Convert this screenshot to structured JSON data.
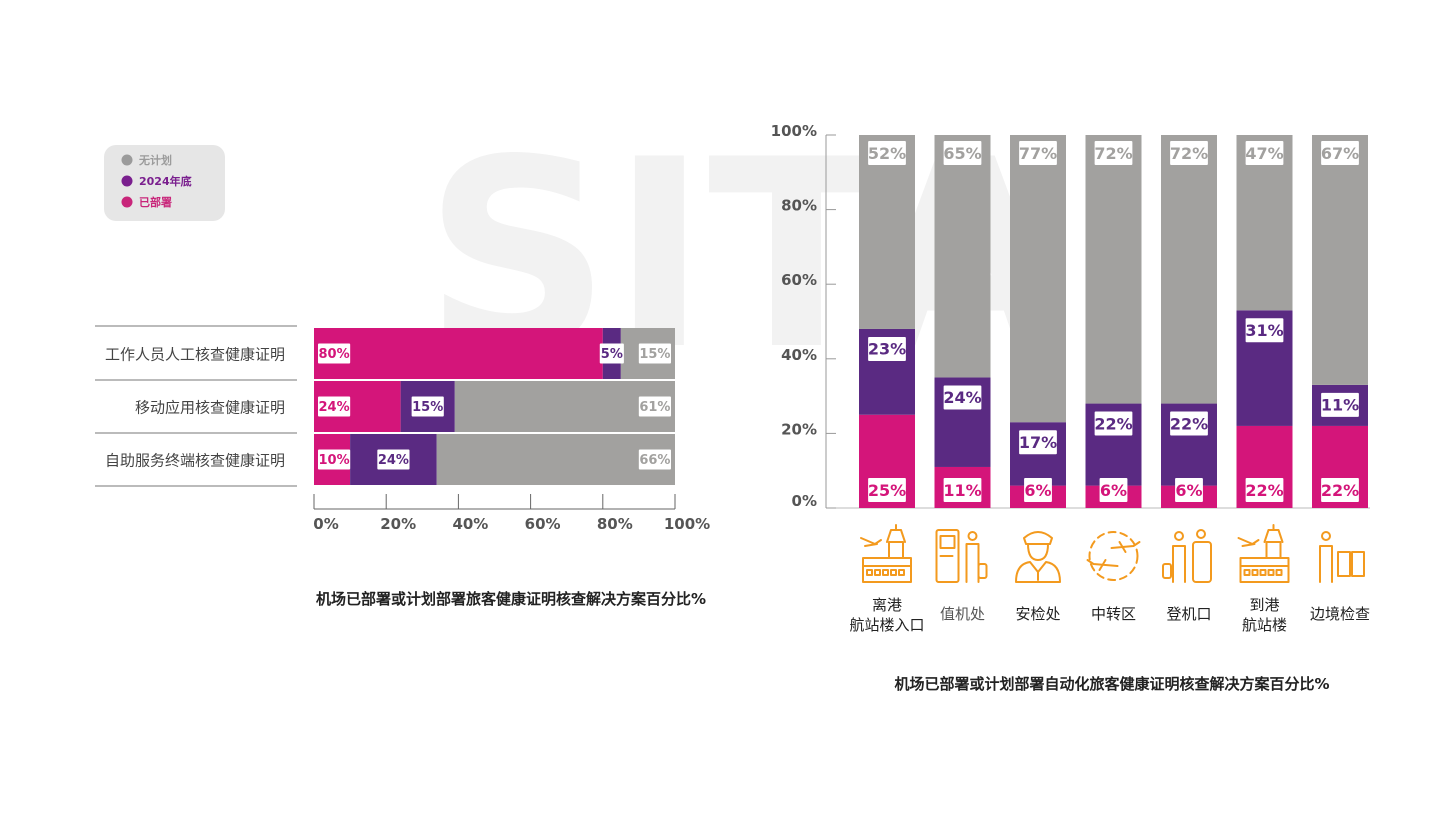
{
  "watermark": "SITA",
  "colors": {
    "deployed": "#d4157a",
    "plan_2024": "#5a2a82",
    "no_plan": "#a2a19f",
    "icon": "#f39a1e",
    "text": "#444444",
    "legend_bg": "#e6e6e6"
  },
  "legend": {
    "items": [
      {
        "label": "无计划",
        "color": "#9b9b9b"
      },
      {
        "label": "2024年底",
        "color": "#7a1f8e"
      },
      {
        "label": "已部署",
        "color": "#c8257a"
      }
    ]
  },
  "chart_data": [
    {
      "type": "bar",
      "orientation": "horizontal",
      "stacked": true,
      "title": "机场已部署或计划部署旅客健康证明核查解决方案百分比%",
      "categories": [
        "工作人员人工核查健康证明",
        "移动应用核查健康证明",
        "自助服务终端核查健康证明"
      ],
      "series": [
        {
          "name": "已部署",
          "values": [
            80,
            24,
            10
          ]
        },
        {
          "name": "2024年底",
          "values": [
            5,
            15,
            24
          ]
        },
        {
          "name": "无计划",
          "values": [
            15,
            61,
            66
          ]
        }
      ],
      "xticks": [
        "0%",
        "20%",
        "40%",
        "60%",
        "80%",
        "100%"
      ],
      "xlim": [
        0,
        100
      ]
    },
    {
      "type": "bar",
      "orientation": "vertical",
      "stacked": true,
      "title": "机场已部署或计划部署自动化旅客健康证明核查解决方案百分比%",
      "categories": [
        "离港\n航站楼入口",
        "值机处",
        "安检处",
        "中转区",
        "登机口",
        "到港\n航站楼",
        "边境检查"
      ],
      "category_icons": [
        "departure-terminal-icon",
        "check-in-kiosk-icon",
        "security-officer-icon",
        "transfer-icon",
        "boarding-gate-icon",
        "arrival-terminal-icon",
        "border-control-icon"
      ],
      "series": [
        {
          "name": "已部署",
          "values": [
            25,
            11,
            6,
            6,
            6,
            22,
            22
          ]
        },
        {
          "name": "2024年底",
          "values": [
            23,
            24,
            17,
            22,
            22,
            31,
            11
          ]
        },
        {
          "name": "无计划",
          "values": [
            52,
            65,
            77,
            72,
            72,
            47,
            67
          ]
        }
      ],
      "yticks": [
        "0%",
        "20%",
        "40%",
        "60%",
        "80%",
        "100%"
      ],
      "ylim": [
        0,
        100
      ]
    }
  ]
}
